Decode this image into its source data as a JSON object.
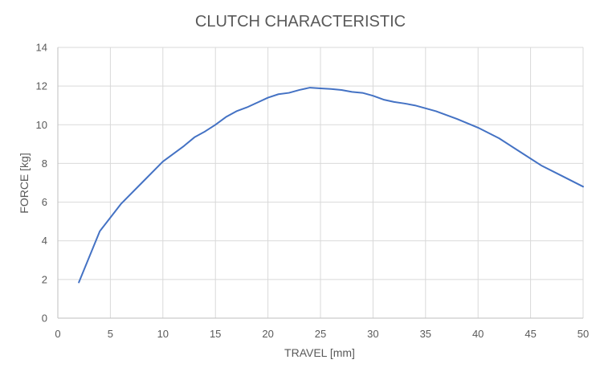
{
  "chart_data": {
    "type": "line",
    "title": "CLUTCH CHARACTERISTIC",
    "xlabel": "TRAVEL [mm]",
    "ylabel": "FORCE [kg]",
    "xlim": [
      0,
      50
    ],
    "ylim": [
      0,
      14
    ],
    "x_ticks": [
      0,
      5,
      10,
      15,
      20,
      25,
      30,
      35,
      40,
      45,
      50
    ],
    "y_ticks": [
      0,
      2,
      4,
      6,
      8,
      10,
      12,
      14
    ],
    "grid": true,
    "legend": "none",
    "line_color": "#4472c4",
    "grid_color": "#d9d9d9",
    "series": [
      {
        "x": [
          2,
          4,
          6,
          8,
          10,
          12,
          13,
          14,
          15,
          16,
          17,
          18,
          19,
          20,
          21,
          22,
          23,
          24,
          25,
          26,
          27,
          28,
          29,
          30,
          31,
          32,
          33,
          34,
          36,
          38,
          40,
          42,
          44,
          46,
          48,
          50
        ],
        "values": [
          1.85,
          4.5,
          5.9,
          7.0,
          8.1,
          8.9,
          9.35,
          9.65,
          10.0,
          10.4,
          10.7,
          10.9,
          11.15,
          11.4,
          11.58,
          11.65,
          11.8,
          11.92,
          11.88,
          11.85,
          11.8,
          11.7,
          11.65,
          11.5,
          11.3,
          11.18,
          11.1,
          11.0,
          10.7,
          10.3,
          9.85,
          9.3,
          8.6,
          7.9,
          7.35,
          6.8
        ]
      }
    ]
  }
}
